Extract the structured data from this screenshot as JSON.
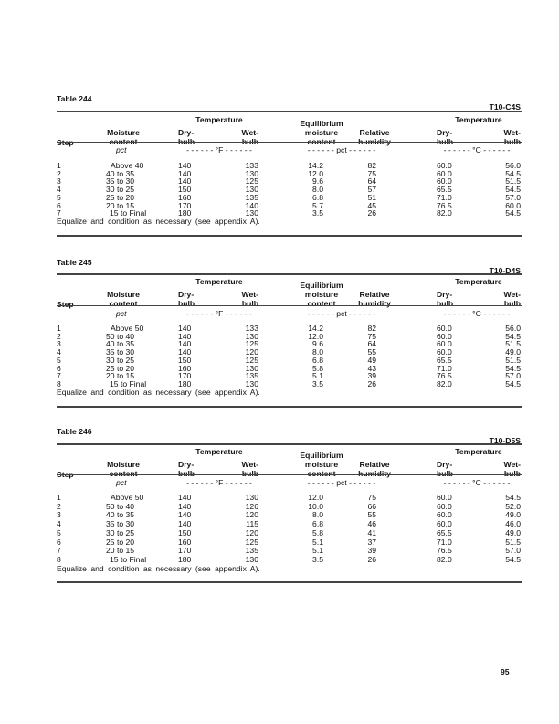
{
  "headers": {
    "step": "Step",
    "moisture_1": "Moisture",
    "moisture_2": "content",
    "temperature": "Temperature",
    "dry_1": "Dry-",
    "dry_2": "bulb",
    "wet_1": "Wet-",
    "wet_2": "bulb",
    "emc_1": "Equilibrium",
    "emc_2": "moisture",
    "emc_3": "content",
    "rh_1": "Relative",
    "rh_2": "humidity",
    "unit_pct": "pct",
    "unit_f": "- - - - - - °F - - - - - -",
    "unit_pct2": "- - - - - - pct - - - - - -",
    "unit_c": "- - - - - - °C - - - - - -"
  },
  "tables": [
    {
      "title": "Table 244",
      "code": "T10-C4S",
      "rows": [
        [
          "1",
          "Above 40",
          "140",
          "133",
          "14.2",
          "82",
          "60.0",
          "56.0"
        ],
        [
          "2",
          "40 to 35",
          "140",
          "130",
          "12.0",
          "75",
          "60.0",
          "54.5"
        ],
        [
          "3",
          "35 to 30",
          "140",
          "125",
          "9.6",
          "64",
          "60.0",
          "51.5"
        ],
        [
          "4",
          "30 to 25",
          "150",
          "130",
          "8.0",
          "57",
          "65.5",
          "54.5"
        ],
        [
          "5",
          "25 to 20",
          "160",
          "135",
          "6.8",
          "51",
          "71.0",
          "57.0"
        ],
        [
          "6",
          "20 to 15",
          "170",
          "140",
          "5.7",
          "45",
          "76.5",
          "60.0"
        ],
        [
          "7",
          "15 to Final",
          "180",
          "130",
          "3.5",
          "26",
          "82.0",
          "54.5"
        ]
      ],
      "note": "Equalize and condition as necessary (see appendix A)."
    },
    {
      "title": "Table 245",
      "code": "T10-D4S",
      "rows": [
        [
          "1",
          "Above 50",
          "140",
          "133",
          "14.2",
          "82",
          "60.0",
          "56.0"
        ],
        [
          "2",
          "50 to 40",
          "140",
          "130",
          "12.0",
          "75",
          "60.0",
          "54.5"
        ],
        [
          "3",
          "40 to 35",
          "140",
          "125",
          "9.6",
          "64",
          "60.0",
          "51.5"
        ],
        [
          "4",
          "35 to 30",
          "140",
          "120",
          "8.0",
          "55",
          "60.0",
          "49.0"
        ],
        [
          "5",
          "30 to 25",
          "150",
          "125",
          "6.8",
          "49",
          "65.5",
          "51.5"
        ],
        [
          "6",
          "25 to 20",
          "160",
          "130",
          "5.8",
          "43",
          "71.0",
          "54.5"
        ],
        [
          "7",
          "20 to 15",
          "170",
          "135",
          "5.1",
          "39",
          "76.5",
          "57.0"
        ],
        [
          "8",
          "15 to Final",
          "180",
          "130",
          "3.5",
          "26",
          "82.0",
          "54.5"
        ]
      ],
      "note": "Equalize and condition as necessary (see appendix A)."
    },
    {
      "title": "Table 246",
      "code": "T10-D5S",
      "rows": [
        [
          "1",
          "Above 50",
          "140",
          "130",
          "12.0",
          "75",
          "60.0",
          "54.5"
        ],
        [
          "2",
          "50 to 40",
          "140",
          "126",
          "10.0",
          "66",
          "60.0",
          "52.0"
        ],
        [
          "3",
          "40 to 35",
          "140",
          "120",
          "8.0",
          "55",
          "60.0",
          "49.0"
        ],
        [
          "4",
          "35 to 30",
          "140",
          "115",
          "6.8",
          "46",
          "60.0",
          "46.0"
        ],
        [
          "5",
          "30 to 25",
          "150",
          "120",
          "5.8",
          "41",
          "65.5",
          "49.0"
        ],
        [
          "6",
          "25 to 20",
          "160",
          "125",
          "5.1",
          "37",
          "71.0",
          "51.5"
        ],
        [
          "7",
          "20 to 15",
          "170",
          "135",
          "5.1",
          "39",
          "76.5",
          "57.0"
        ],
        [
          "8",
          "15 to Final",
          "180",
          "130",
          "3.5",
          "26",
          "82.0",
          "54.5"
        ]
      ],
      "note": "Equalize and condition as necessary (see appendix A)."
    }
  ],
  "page_number": "95"
}
